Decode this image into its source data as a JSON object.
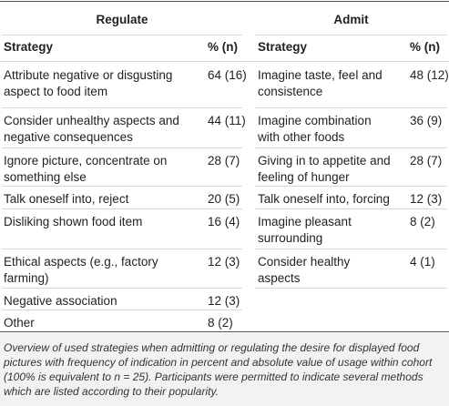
{
  "regulate": {
    "title": "Regulate",
    "headers": [
      "Strategy",
      "% (n)"
    ],
    "rows": [
      [
        [
          "Attribute negative or disgusting",
          "aspect to food item"
        ],
        "64 (16)"
      ],
      [
        [
          "Consider unhealthy aspects and",
          "negative consequences"
        ],
        "44 (11)"
      ],
      [
        [
          "Ignore picture, concentrate on",
          "something else"
        ],
        "28 (7)"
      ],
      [
        [
          "Talk oneself into, reject"
        ],
        "20 (5)"
      ],
      [
        [
          "Disliking shown food item"
        ],
        "16 (4)"
      ],
      [
        [
          "Ethical aspects (e.g., factory",
          "farming)"
        ],
        "12 (3)"
      ],
      [
        [
          "Negative association"
        ],
        "12 (3)"
      ],
      [
        [
          "Other"
        ],
        "8 (2)"
      ]
    ]
  },
  "admit": {
    "title": "Admit",
    "headers": [
      "Strategy",
      "% (n)"
    ],
    "rows": [
      [
        [
          "Imagine taste, feel and",
          "consistence"
        ],
        "48 (12)"
      ],
      [
        [
          "Imagine combination",
          "with other foods"
        ],
        "36 (9)"
      ],
      [
        [
          "Giving in to appetite and",
          "feeling of hunger"
        ],
        "28 (7)"
      ],
      [
        [
          "Talk oneself into, forcing"
        ],
        "12 (3)"
      ],
      [
        [
          "Imagine pleasant",
          "surrounding"
        ],
        "8 (2)"
      ],
      [
        [
          "Consider healthy",
          "aspects"
        ],
        "4 (1)"
      ]
    ]
  },
  "caption": [
    "Overview of used strategies when admitting or regulating the desire for displayed food",
    "pictures with frequency of indication in percent and absolute value of usage within cohort",
    "(100% is equivalent to n = 25). Participants were permitted to indicate several methods",
    "which are listed according to their popularity."
  ]
}
